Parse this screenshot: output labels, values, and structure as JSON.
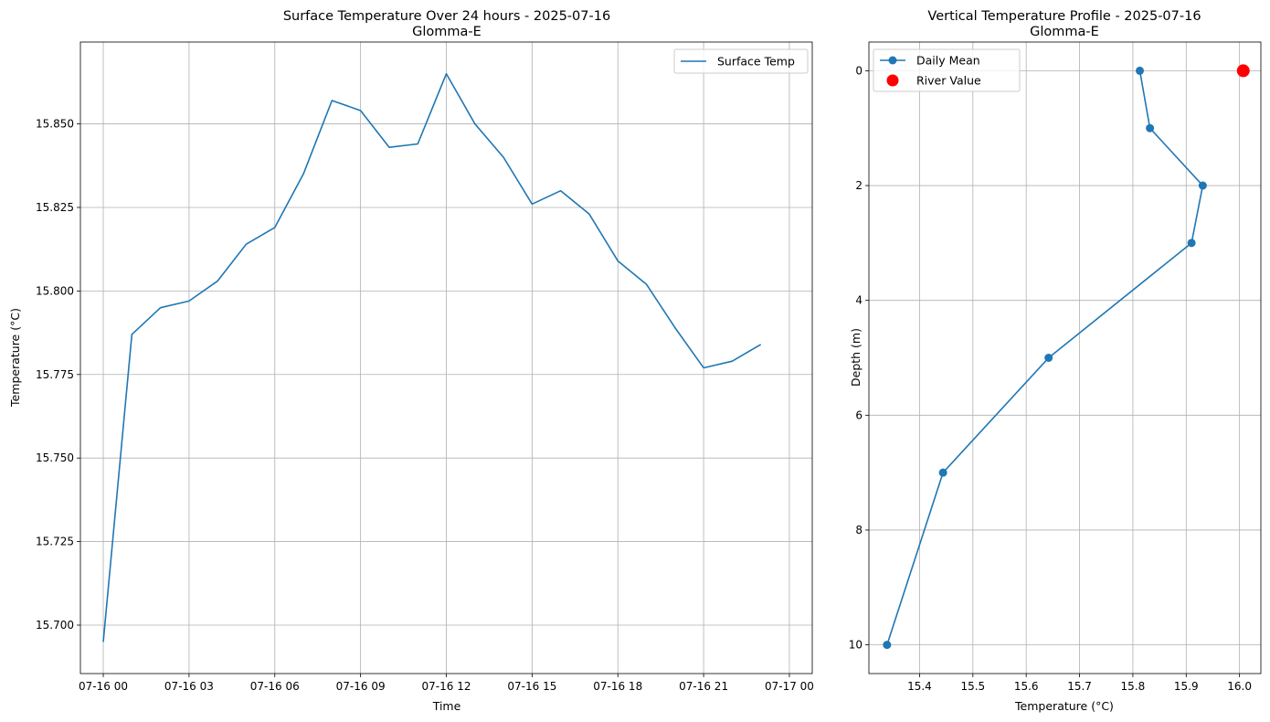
{
  "chart_data": [
    {
      "type": "line",
      "title": "Surface Temperature Over 24 hours - 2025-07-16",
      "subtitle": "Glomma-E",
      "xlabel": "Time",
      "ylabel": "Temperature (°C)",
      "x_axis_type": "datetime",
      "xlim": [
        "2025-07-15T23:12",
        "2025-07-17T00:48"
      ],
      "ylim": [
        15.6855,
        15.8745
      ],
      "x_ticks": [
        "2025-07-16T00:00",
        "2025-07-16T03:00",
        "2025-07-16T06:00",
        "2025-07-16T09:00",
        "2025-07-16T12:00",
        "2025-07-16T15:00",
        "2025-07-16T18:00",
        "2025-07-16T21:00",
        "2025-07-17T00:00"
      ],
      "x_tick_labels": [
        "07-16 00",
        "07-16 03",
        "07-16 06",
        "07-16 09",
        "07-16 12",
        "07-16 15",
        "07-16 18",
        "07-16 21",
        "07-17 00"
      ],
      "y_ticks": [
        15.7,
        15.725,
        15.75,
        15.775,
        15.8,
        15.825,
        15.85
      ],
      "y_tick_labels": [
        "15.700",
        "15.725",
        "15.750",
        "15.775",
        "15.800",
        "15.825",
        "15.850"
      ],
      "grid": true,
      "legend": "top-right",
      "color": "#1f77b4",
      "series": [
        {
          "name": "Surface Temp",
          "x": [
            "2025-07-16T00:00",
            "2025-07-16T01:00",
            "2025-07-16T02:00",
            "2025-07-16T03:00",
            "2025-07-16T04:00",
            "2025-07-16T05:00",
            "2025-07-16T06:00",
            "2025-07-16T07:00",
            "2025-07-16T08:00",
            "2025-07-16T09:00",
            "2025-07-16T10:00",
            "2025-07-16T11:00",
            "2025-07-16T12:00",
            "2025-07-16T13:00",
            "2025-07-16T14:00",
            "2025-07-16T15:00",
            "2025-07-16T16:00",
            "2025-07-16T17:00",
            "2025-07-16T18:00",
            "2025-07-16T19:00",
            "2025-07-16T20:00",
            "2025-07-16T21:00",
            "2025-07-16T22:00",
            "2025-07-16T23:00"
          ],
          "y": [
            15.695,
            15.787,
            15.795,
            15.797,
            15.803,
            15.814,
            15.819,
            15.835,
            15.857,
            15.854,
            15.843,
            15.844,
            15.865,
            15.85,
            15.84,
            15.826,
            15.83,
            15.823,
            15.809,
            15.802,
            15.789,
            15.777,
            15.779,
            15.784
          ]
        }
      ]
    },
    {
      "type": "line",
      "title": "Vertical Temperature Profile - 2025-07-16",
      "subtitle": "Glomma-E",
      "xlabel": "Temperature (°C)",
      "ylabel": "Depth (m)",
      "xlim": [
        15.305,
        16.04
      ],
      "ylim": [
        10.5,
        -0.5
      ],
      "y_inverted": true,
      "x_ticks": [
        15.4,
        15.5,
        15.6,
        15.7,
        15.8,
        15.9,
        16.0
      ],
      "x_tick_labels": [
        "15.4",
        "15.5",
        "15.6",
        "15.7",
        "15.8",
        "15.9",
        "16.0"
      ],
      "y_ticks": [
        0,
        2,
        4,
        6,
        8,
        10
      ],
      "y_tick_labels": [
        "0",
        "2",
        "4",
        "6",
        "8",
        "10"
      ],
      "grid": true,
      "legend": "top-left",
      "series": [
        {
          "name": "Daily Mean",
          "color": "#1f77b4",
          "marker": "circle",
          "x": [
            15.813,
            15.832,
            15.931,
            15.91,
            15.642,
            15.444,
            15.339
          ],
          "y": [
            0,
            1,
            2,
            3,
            5,
            7,
            10
          ]
        },
        {
          "name": "River Value",
          "color": "#ff0000",
          "marker": "circle",
          "kind": "scatter",
          "x": [
            16.007
          ],
          "y": [
            0
          ]
        }
      ]
    }
  ]
}
